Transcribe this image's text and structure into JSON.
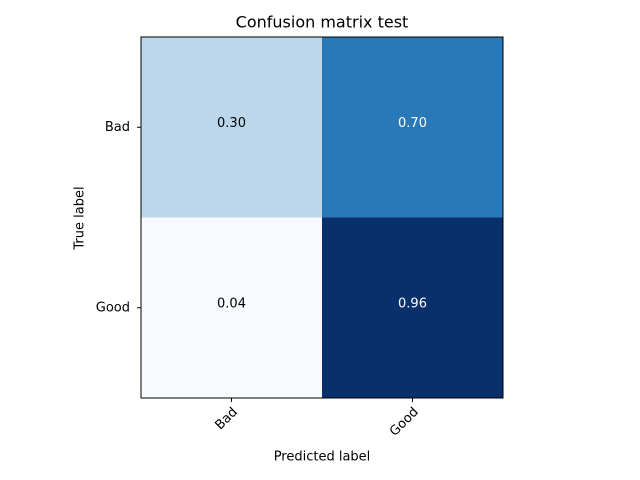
{
  "chart_data": {
    "type": "heatmap",
    "title": "Confusion matrix test",
    "x_label": "Predicted label",
    "y_label": "True label",
    "x_categories": [
      "Bad",
      "Good"
    ],
    "y_categories": [
      "Bad",
      "Good"
    ],
    "values": [
      [
        0.3,
        0.7
      ],
      [
        0.04,
        0.96
      ]
    ],
    "value_labels": [
      [
        "0.30",
        "0.70"
      ],
      [
        "0.04",
        "0.96"
      ]
    ],
    "colors": [
      [
        "#bcd7eb",
        "#2979b9"
      ],
      [
        "#f7fbff",
        "#08306b"
      ]
    ],
    "colormap": "Blues"
  }
}
